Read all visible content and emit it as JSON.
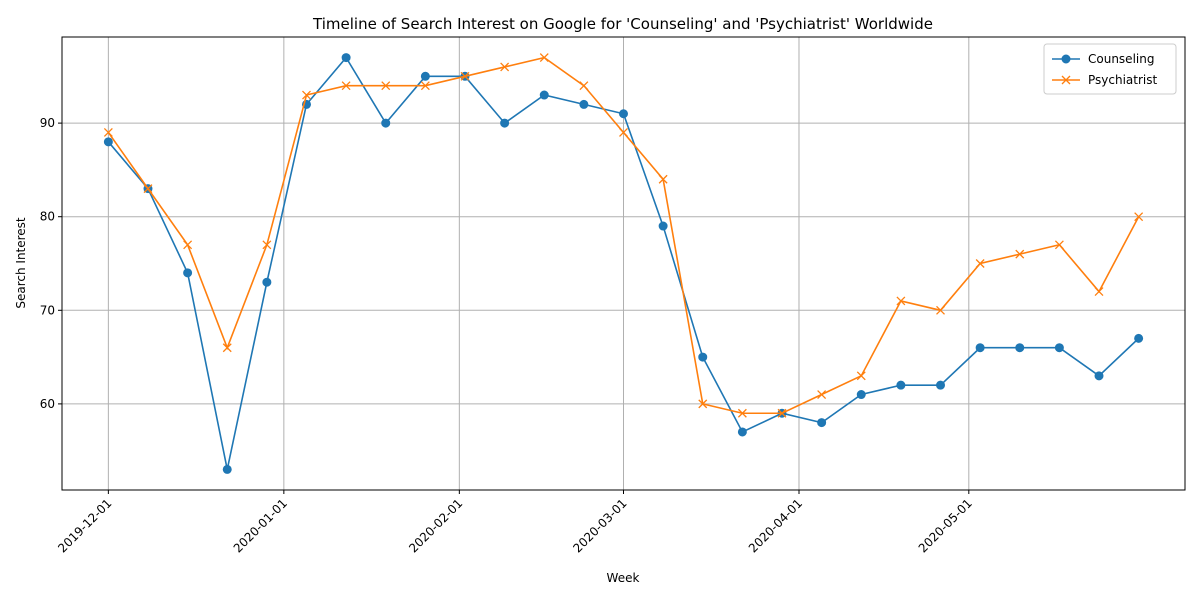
{
  "chart_data": {
    "type": "line",
    "title": "Timeline of Search Interest on Google for 'Counseling' and 'Psychiatrist' Worldwide",
    "xlabel": "Week",
    "ylabel": "Search Interest",
    "x": [
      "2019-12-01",
      "2019-12-08",
      "2019-12-15",
      "2019-12-22",
      "2019-12-29",
      "2020-01-05",
      "2020-01-12",
      "2020-01-19",
      "2020-01-26",
      "2020-02-02",
      "2020-02-09",
      "2020-02-16",
      "2020-02-23",
      "2020-03-01",
      "2020-03-08",
      "2020-03-15",
      "2020-03-22",
      "2020-03-29",
      "2020-04-05",
      "2020-04-12",
      "2020-04-19",
      "2020-04-26",
      "2020-05-03",
      "2020-05-10",
      "2020-05-17",
      "2020-05-24",
      "2020-05-31"
    ],
    "x_ticks": [
      "2019-12-01",
      "2020-01-01",
      "2020-02-01",
      "2020-03-01",
      "2020-04-01",
      "2020-05-01"
    ],
    "y_ticks": [
      60,
      70,
      80,
      90
    ],
    "ylim": [
      50.8,
      99.2
    ],
    "grid": true,
    "legend_position": "top-right",
    "series": [
      {
        "name": "Counseling",
        "color": "#1f77b4",
        "marker": "circle",
        "values": [
          88,
          83,
          74,
          53,
          73,
          92,
          97,
          90,
          95,
          95,
          90,
          93,
          92,
          91,
          79,
          65,
          57,
          59,
          58,
          61,
          62,
          62,
          66,
          66,
          66,
          63,
          67
        ]
      },
      {
        "name": "Psychiatrist",
        "color": "#ff7f0e",
        "marker": "x",
        "values": [
          89,
          83,
          77,
          66,
          77,
          93,
          94,
          94,
          94,
          95,
          96,
          97,
          94,
          89,
          84,
          60,
          59,
          59,
          61,
          63,
          71,
          70,
          75,
          76,
          77,
          72,
          80
        ]
      }
    ]
  }
}
